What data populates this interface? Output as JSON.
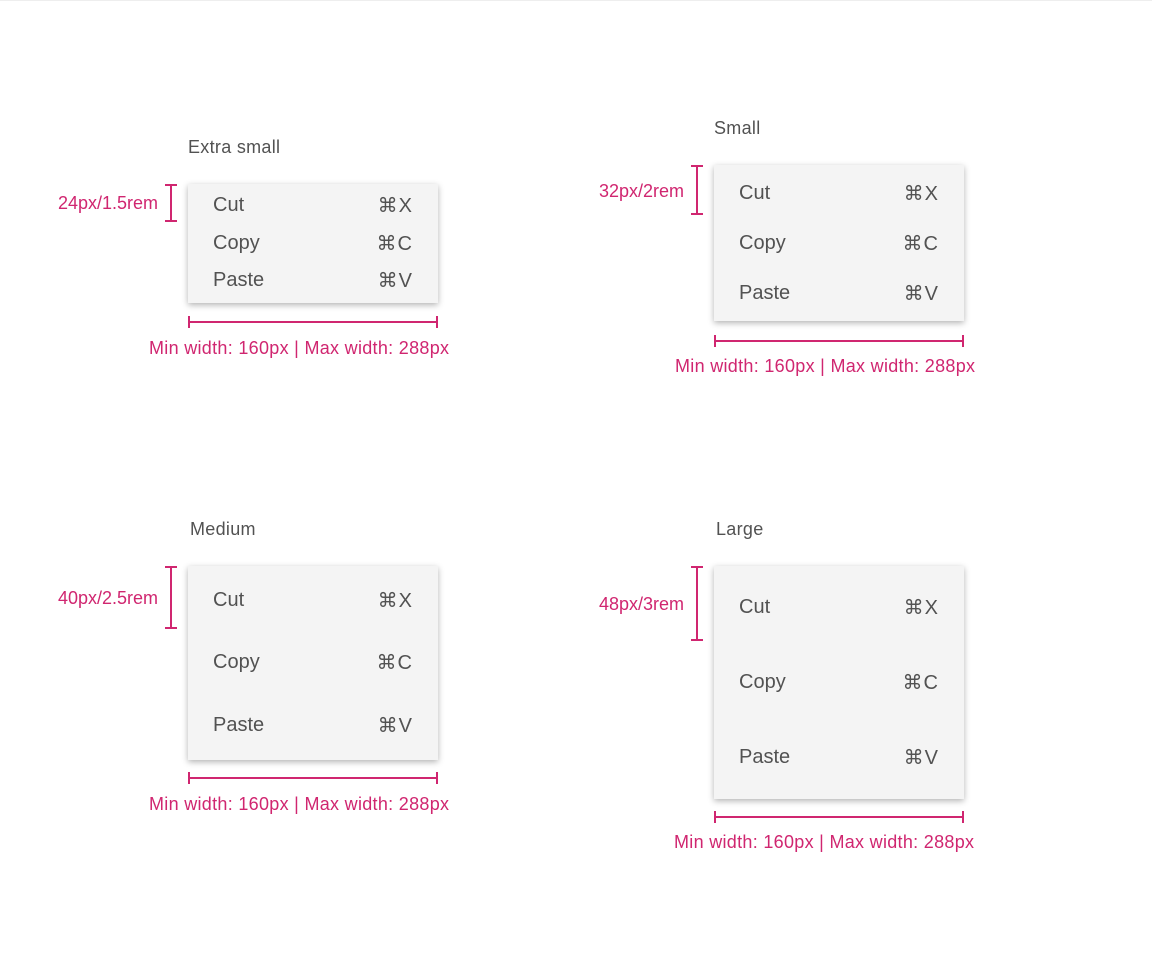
{
  "accent_color": "#d02670",
  "menu_items": [
    {
      "label": "Cut",
      "shortcut": "⌘X"
    },
    {
      "label": "Copy",
      "shortcut": "⌘C"
    },
    {
      "label": "Paste",
      "shortcut": "⌘V"
    }
  ],
  "sizes": [
    {
      "title": "Extra small",
      "height_label": "24px/1.5rem",
      "width_label": "Min width: 160px | Max width: 288px"
    },
    {
      "title": "Small",
      "height_label": "32px/2rem",
      "width_label": "Min width: 160px | Max width: 288px"
    },
    {
      "title": "Medium",
      "height_label": "40px/2.5rem",
      "width_label": "Min width: 160px | Max width: 288px"
    },
    {
      "title": "Large",
      "height_label": "48px/3rem",
      "width_label": "Min width: 160px | Max width: 288px"
    }
  ]
}
